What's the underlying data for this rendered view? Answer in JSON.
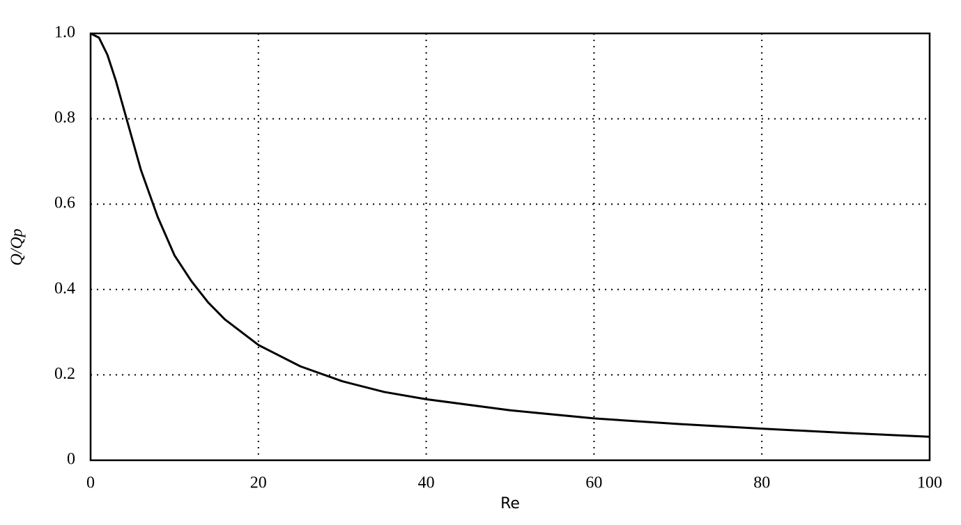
{
  "chart_data": {
    "type": "line",
    "x_label": "Re",
    "y_label": "Q/Qp",
    "x": [
      0,
      1,
      2,
      3,
      4,
      5,
      6,
      8,
      10,
      12,
      14,
      16,
      18,
      20,
      25,
      30,
      35,
      40,
      50,
      60,
      70,
      80,
      90,
      100
    ],
    "series": [
      {
        "name": "Q/Qp",
        "color": "#000000",
        "values": [
          1.0,
          0.99,
          0.95,
          0.89,
          0.82,
          0.75,
          0.68,
          0.57,
          0.48,
          0.42,
          0.37,
          0.33,
          0.3,
          0.27,
          0.22,
          0.185,
          0.16,
          0.143,
          0.117,
          0.098,
          0.085,
          0.074,
          0.064,
          0.055
        ]
      }
    ],
    "xlim": [
      0,
      100
    ],
    "ylim": [
      0,
      1
    ],
    "xticks": [
      0,
      20,
      40,
      60,
      80,
      100
    ],
    "yticks": [
      0,
      0.2,
      0.4,
      0.6,
      0.8,
      {
        "value": 1,
        "label": "1.0"
      }
    ],
    "grid": true
  }
}
